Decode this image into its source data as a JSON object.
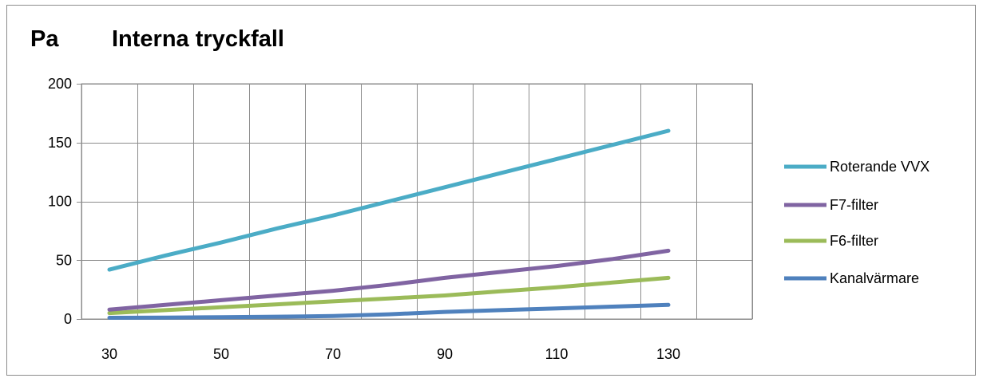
{
  "chart_data": {
    "type": "line",
    "title": "Interna tryckfall",
    "ylabel": "Pa",
    "xlabel": "",
    "x": [
      30,
      40,
      50,
      60,
      70,
      80,
      90,
      100,
      110,
      120,
      130
    ],
    "x_ticks": [
      30,
      50,
      70,
      90,
      110,
      130
    ],
    "ylim": [
      0,
      200
    ],
    "y_ticks": [
      0,
      50,
      100,
      150,
      200
    ],
    "grid": true,
    "legend_position": "right",
    "series": [
      {
        "name": "Roterande VVX",
        "color": "#4bacc6",
        "values": [
          42,
          54,
          65,
          77,
          88,
          100,
          112,
          124,
          136,
          148,
          160
        ]
      },
      {
        "name": "F7-filter",
        "color": "#8064a2",
        "values": [
          8,
          12,
          16,
          20,
          24,
          29,
          35,
          40,
          45,
          51,
          58
        ]
      },
      {
        "name": "F6-filter",
        "color": "#9bbb59",
        "values": [
          5,
          7.5,
          10,
          12.5,
          15,
          17.5,
          20,
          23.5,
          27,
          31,
          35
        ]
      },
      {
        "name": "Kanalvärmare",
        "color": "#4f81bd",
        "values": [
          1,
          1.2,
          1.5,
          2,
          2.5,
          4,
          6,
          7.5,
          9,
          10.5,
          12
        ]
      }
    ]
  }
}
